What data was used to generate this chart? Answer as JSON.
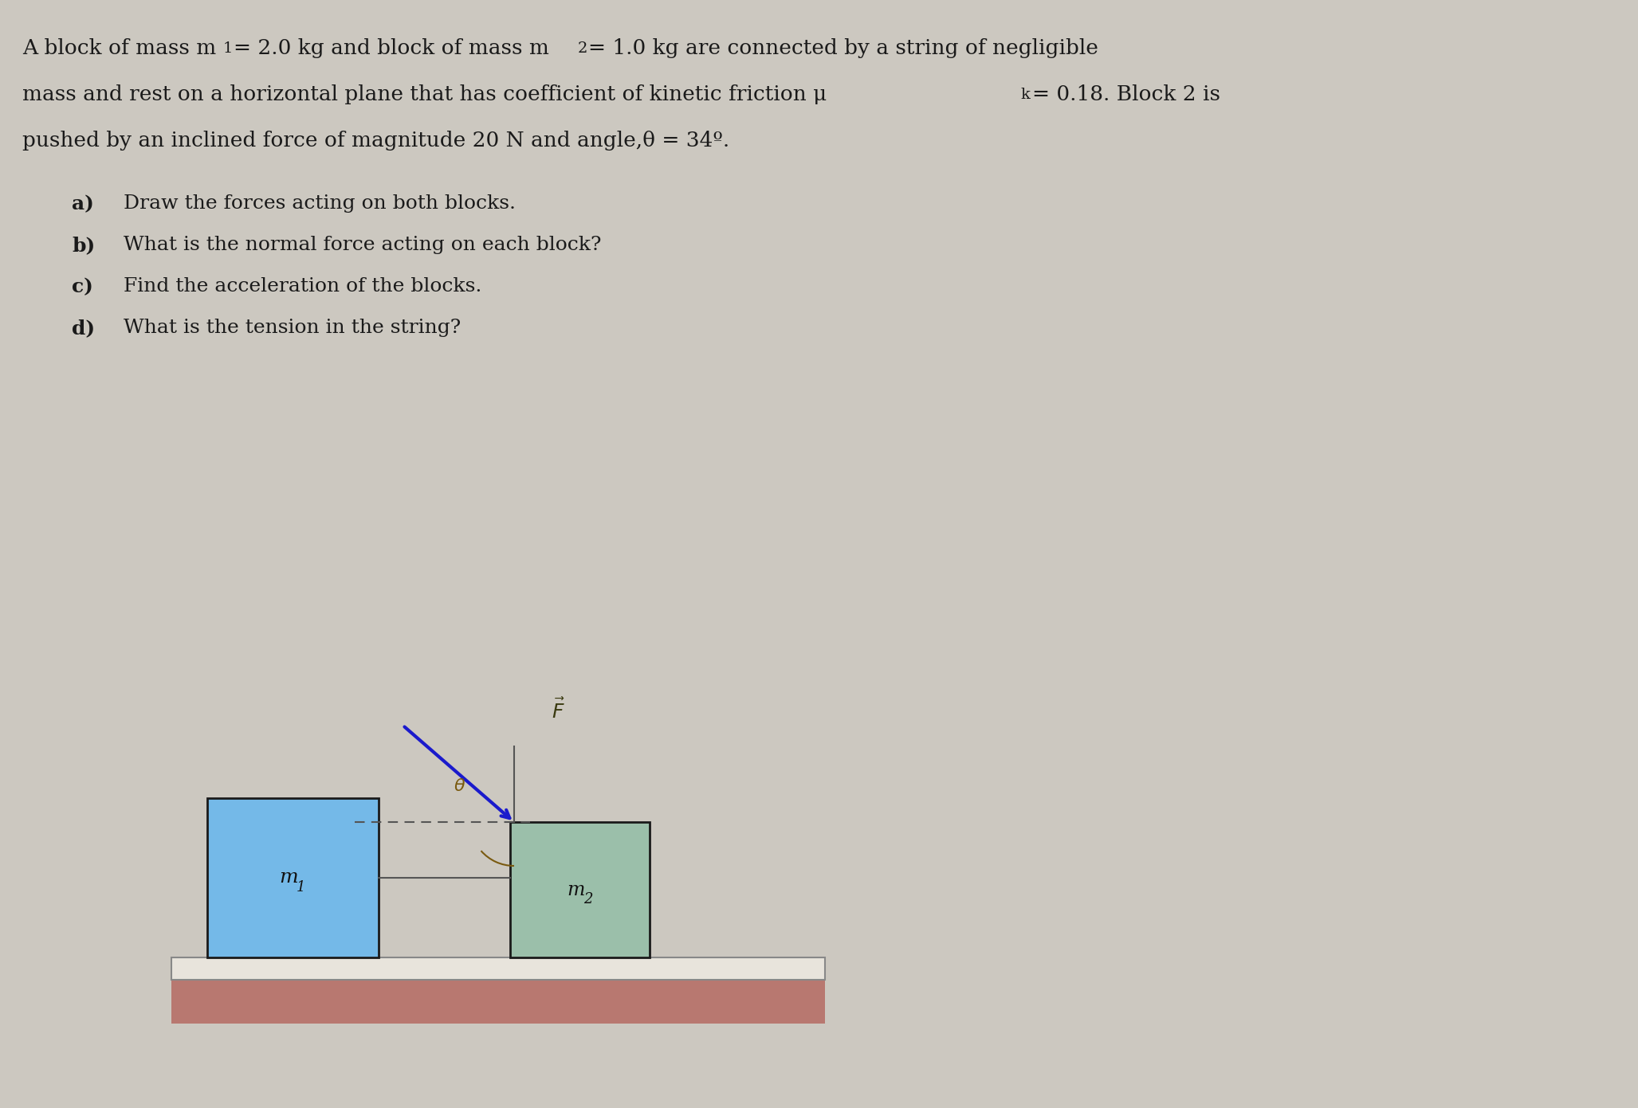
{
  "bg_color": "#ccc8c0",
  "title_line1": "A block of mass m",
  "title_line1_sub": "1",
  "title_line1_rest": "= 2.0 kg and block of mass m",
  "title_line1_sub2": "2",
  "title_line1_rest2": "= 1.0 kg are connected by a string of negligible",
  "title_line2": "mass and rest on a horizontal plane that has coefficient of kinetic friction μ",
  "title_line2_sub": "k",
  "title_line2_rest": "= 0.18. Block 2 is",
  "title_line3": "pushed by an inclined force of magnitude 20 N and angle,θ = 34º.",
  "questions": [
    [
      "a)",
      "Draw the forces acting on both blocks."
    ],
    [
      "b)",
      "What is the normal force acting on each block?"
    ],
    [
      "c)",
      "Find the acceleration of the blocks."
    ],
    [
      "d)",
      "What is the tension in the string?"
    ]
  ],
  "block1_color": "#74b9e8",
  "block2_color": "#9bbfaa",
  "ground_color": "#b87870",
  "surface_color": "#e8e4dc",
  "force_arrow_color": "#1a1acc",
  "angle_label_color": "#7a5a10",
  "F_label_color": "#3a3a10",
  "block1_label": "m",
  "block2_label": "m",
  "text_color": "#1a1a1a",
  "font_size_title": 19,
  "font_size_q": 18,
  "font_size_block": 16
}
